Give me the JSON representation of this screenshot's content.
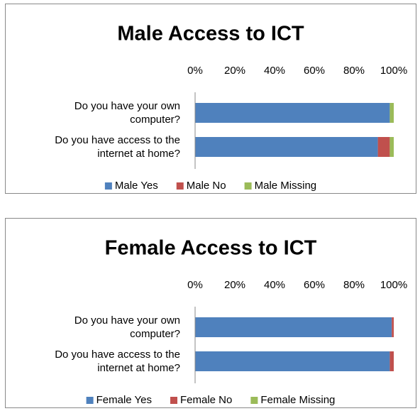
{
  "chart_data": [
    {
      "type": "bar",
      "title": "Male Access to ICT",
      "categories": [
        "Do you have your own computer?",
        "Do you have access to the internet at home?"
      ],
      "series": [
        {
          "name": "Male Yes",
          "color": "#4f81bd",
          "values": [
            98,
            92
          ]
        },
        {
          "name": "Male No",
          "color": "#c0504d",
          "values": [
            0,
            6
          ]
        },
        {
          "name": "Male Missing",
          "color": "#9bbb59",
          "values": [
            2,
            2
          ]
        }
      ],
      "xlim": [
        0,
        100
      ],
      "xticks": [
        {
          "value": 0,
          "label": "0%"
        },
        {
          "value": 20,
          "label": "20%"
        },
        {
          "value": 40,
          "label": "40%"
        },
        {
          "value": 60,
          "label": "60%"
        },
        {
          "value": 80,
          "label": "80%"
        },
        {
          "value": 100,
          "label": "100%"
        }
      ],
      "stacked": true,
      "legend": "bottom"
    },
    {
      "type": "bar",
      "title": "Female Access to ICT",
      "categories": [
        "Do you have your own computer?",
        "Do you have access to the internet at home?"
      ],
      "series": [
        {
          "name": "Female Yes",
          "color": "#4f81bd",
          "values": [
            99,
            98
          ]
        },
        {
          "name": "Female No",
          "color": "#c0504d",
          "values": [
            1,
            2
          ]
        },
        {
          "name": "Female Missing",
          "color": "#9bbb59",
          "values": [
            0,
            0
          ]
        }
      ],
      "xlim": [
        0,
        100
      ],
      "xticks": [
        {
          "value": 0,
          "label": "0%"
        },
        {
          "value": 20,
          "label": "20%"
        },
        {
          "value": 40,
          "label": "40%"
        },
        {
          "value": 60,
          "label": "60%"
        },
        {
          "value": 80,
          "label": "80%"
        },
        {
          "value": 100,
          "label": "100%"
        }
      ],
      "stacked": true,
      "legend": "bottom"
    }
  ]
}
